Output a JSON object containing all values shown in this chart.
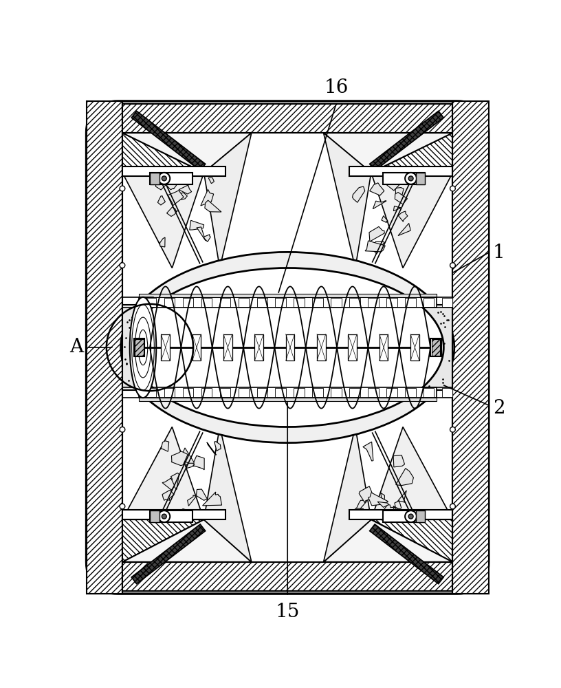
{
  "fig_width": 8.16,
  "fig_height": 10.0,
  "dpi": 100,
  "bg_color": "#ffffff",
  "lc": "#000000",
  "label_16": "16",
  "label_1": "1",
  "label_2": "2",
  "label_A": "A",
  "label_15": "15"
}
